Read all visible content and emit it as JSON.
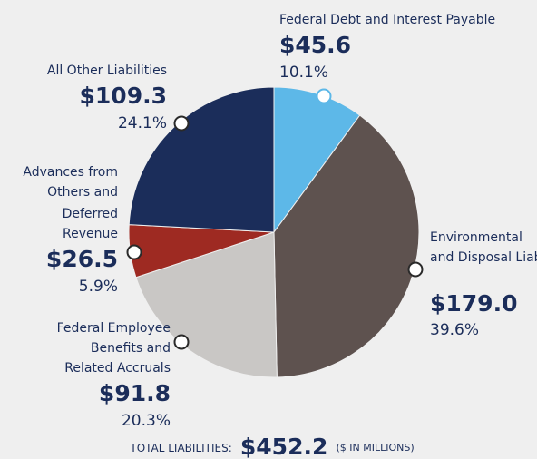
{
  "chart_data": {
    "type": "pie",
    "categories": [
      "Federal Debt and Interest Payable",
      "Environmental and Disposal Liabilities",
      "Federal Employee Benefits and Related Accruals",
      "Advances from Others and Deferred Revenue",
      "All Other Liabilities"
    ],
    "values": [
      45.6,
      179.0,
      91.8,
      26.5,
      109.3
    ],
    "value_labels": [
      "$45.6",
      "$179.0",
      "$91.8",
      "$26.5",
      "$109.3"
    ],
    "percents": [
      10.1,
      39.6,
      20.3,
      5.9,
      24.1
    ],
    "percent_labels": [
      "10.1%",
      "39.6%",
      "20.3%",
      "5.9%",
      "24.1%"
    ],
    "colors": [
      "#5db8e8",
      "#5e524f",
      "#c9c7c5",
      "#9e2a22",
      "#1b2d5a"
    ],
    "total_label": "TOTAL LIABILITIES:",
    "total_value_label": "$452.2",
    "total_unit": "($ IN MILLIONS)"
  }
}
